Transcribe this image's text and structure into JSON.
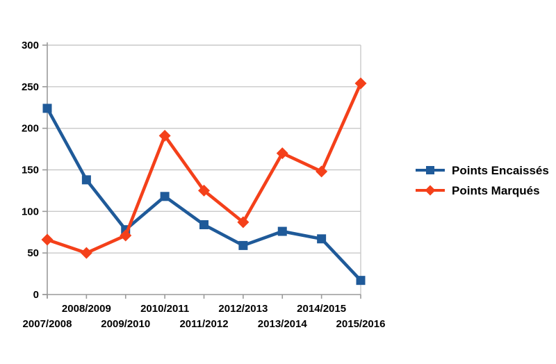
{
  "chart_data": {
    "type": "line",
    "title": "",
    "xlabel": "",
    "ylabel": "",
    "categories": [
      "2007/2008",
      "2008/2009",
      "2009/2010",
      "2010/2011",
      "2011/2012",
      "2012/2013",
      "2013/2014",
      "2014/2015",
      "2015/2016"
    ],
    "series": [
      {
        "name": "Points Encaissés",
        "color": "#1f5a99",
        "marker": "square",
        "values": [
          224,
          138,
          78,
          118,
          84,
          59,
          76,
          67,
          17
        ]
      },
      {
        "name": "Points Marqués",
        "color": "#f4401a",
        "marker": "diamond",
        "values": [
          66,
          50,
          71,
          191,
          125,
          87,
          170,
          148,
          254
        ]
      }
    ],
    "ylim": [
      0,
      300
    ],
    "yticks": [
      0,
      50,
      100,
      150,
      200,
      250,
      300
    ],
    "grid": "horizontal",
    "legend_position": "right",
    "x_labels_staggered": true
  },
  "colors": {
    "background": "#ffffff",
    "grid": "#c9c9c9",
    "axis": "#9a9a9a",
    "text": "#000000",
    "series1": "#1f5a99",
    "series2": "#f4401a"
  }
}
